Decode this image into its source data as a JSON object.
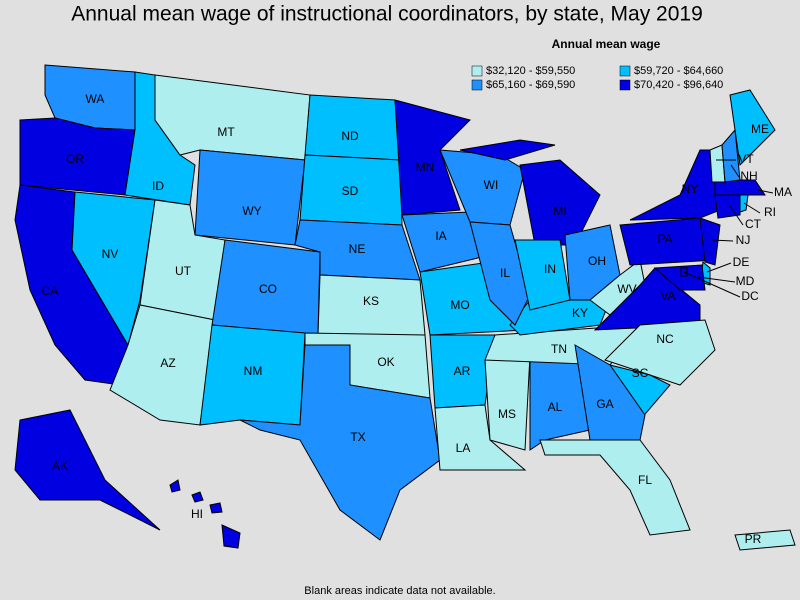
{
  "title": "Annual mean wage of instructional coordinators, by state, May 2019",
  "legend": {
    "title": "Annual mean wage",
    "bins": [
      {
        "label": "$32,120 - $59,550",
        "color": "#afeeee"
      },
      {
        "label": "$59,720 - $64,660",
        "color": "#00bfff"
      },
      {
        "label": "$65,160 - $69,590",
        "color": "#1e90ff"
      },
      {
        "label": "$70,420 - $96,640",
        "color": "#0000e0"
      }
    ]
  },
  "states": [
    {
      "label": "WA",
      "bin": 2
    },
    {
      "label": "OR",
      "bin": 3
    },
    {
      "label": "CA",
      "bin": 3
    },
    {
      "label": "NV",
      "bin": 1
    },
    {
      "label": "ID",
      "bin": 1
    },
    {
      "label": "MT",
      "bin": 0
    },
    {
      "label": "WY",
      "bin": 2
    },
    {
      "label": "UT",
      "bin": 0
    },
    {
      "label": "AZ",
      "bin": 0
    },
    {
      "label": "CO",
      "bin": 2
    },
    {
      "label": "NM",
      "bin": 1
    },
    {
      "label": "ND",
      "bin": 1
    },
    {
      "label": "SD",
      "bin": 1
    },
    {
      "label": "NE",
      "bin": 2
    },
    {
      "label": "KS",
      "bin": 0
    },
    {
      "label": "OK",
      "bin": 0
    },
    {
      "label": "TX",
      "bin": 2
    },
    {
      "label": "MN",
      "bin": 3
    },
    {
      "label": "IA",
      "bin": 2
    },
    {
      "label": "MO",
      "bin": 1
    },
    {
      "label": "AR",
      "bin": 1
    },
    {
      "label": "LA",
      "bin": 0
    },
    {
      "label": "MS",
      "bin": 0
    },
    {
      "label": "AL",
      "bin": 2
    },
    {
      "label": "TN",
      "bin": 0
    },
    {
      "label": "KY",
      "bin": 1
    },
    {
      "label": "WI",
      "bin": 2
    },
    {
      "label": "IL",
      "bin": 2
    },
    {
      "label": "MI",
      "bin": 3
    },
    {
      "label": "IN",
      "bin": 1
    },
    {
      "label": "OH",
      "bin": 2
    },
    {
      "label": "WV",
      "bin": 0
    },
    {
      "label": "VA",
      "bin": 3
    },
    {
      "label": "NC",
      "bin": 0
    },
    {
      "label": "SC",
      "bin": 1
    },
    {
      "label": "GA",
      "bin": 2
    },
    {
      "label": "FL",
      "bin": 0
    },
    {
      "label": "PA",
      "bin": 3
    },
    {
      "label": "NY",
      "bin": 3
    },
    {
      "label": "NJ",
      "bin": 3
    },
    {
      "label": "DE",
      "bin": 1
    },
    {
      "label": "MD",
      "bin": 3
    },
    {
      "label": "CT",
      "bin": 3
    },
    {
      "label": "RI",
      "bin": 1
    },
    {
      "label": "MA",
      "bin": 3
    },
    {
      "label": "VT",
      "bin": 0
    },
    {
      "label": "NH",
      "bin": 2
    },
    {
      "label": "ME",
      "bin": 1
    },
    {
      "label": "AK",
      "bin": 3
    },
    {
      "label": "HI",
      "bin": 3
    },
    {
      "label": "PR",
      "bin": 0
    },
    {
      "label": "DC",
      "bin": 3
    }
  ],
  "footnote": "Blank areas indicate data not available."
}
